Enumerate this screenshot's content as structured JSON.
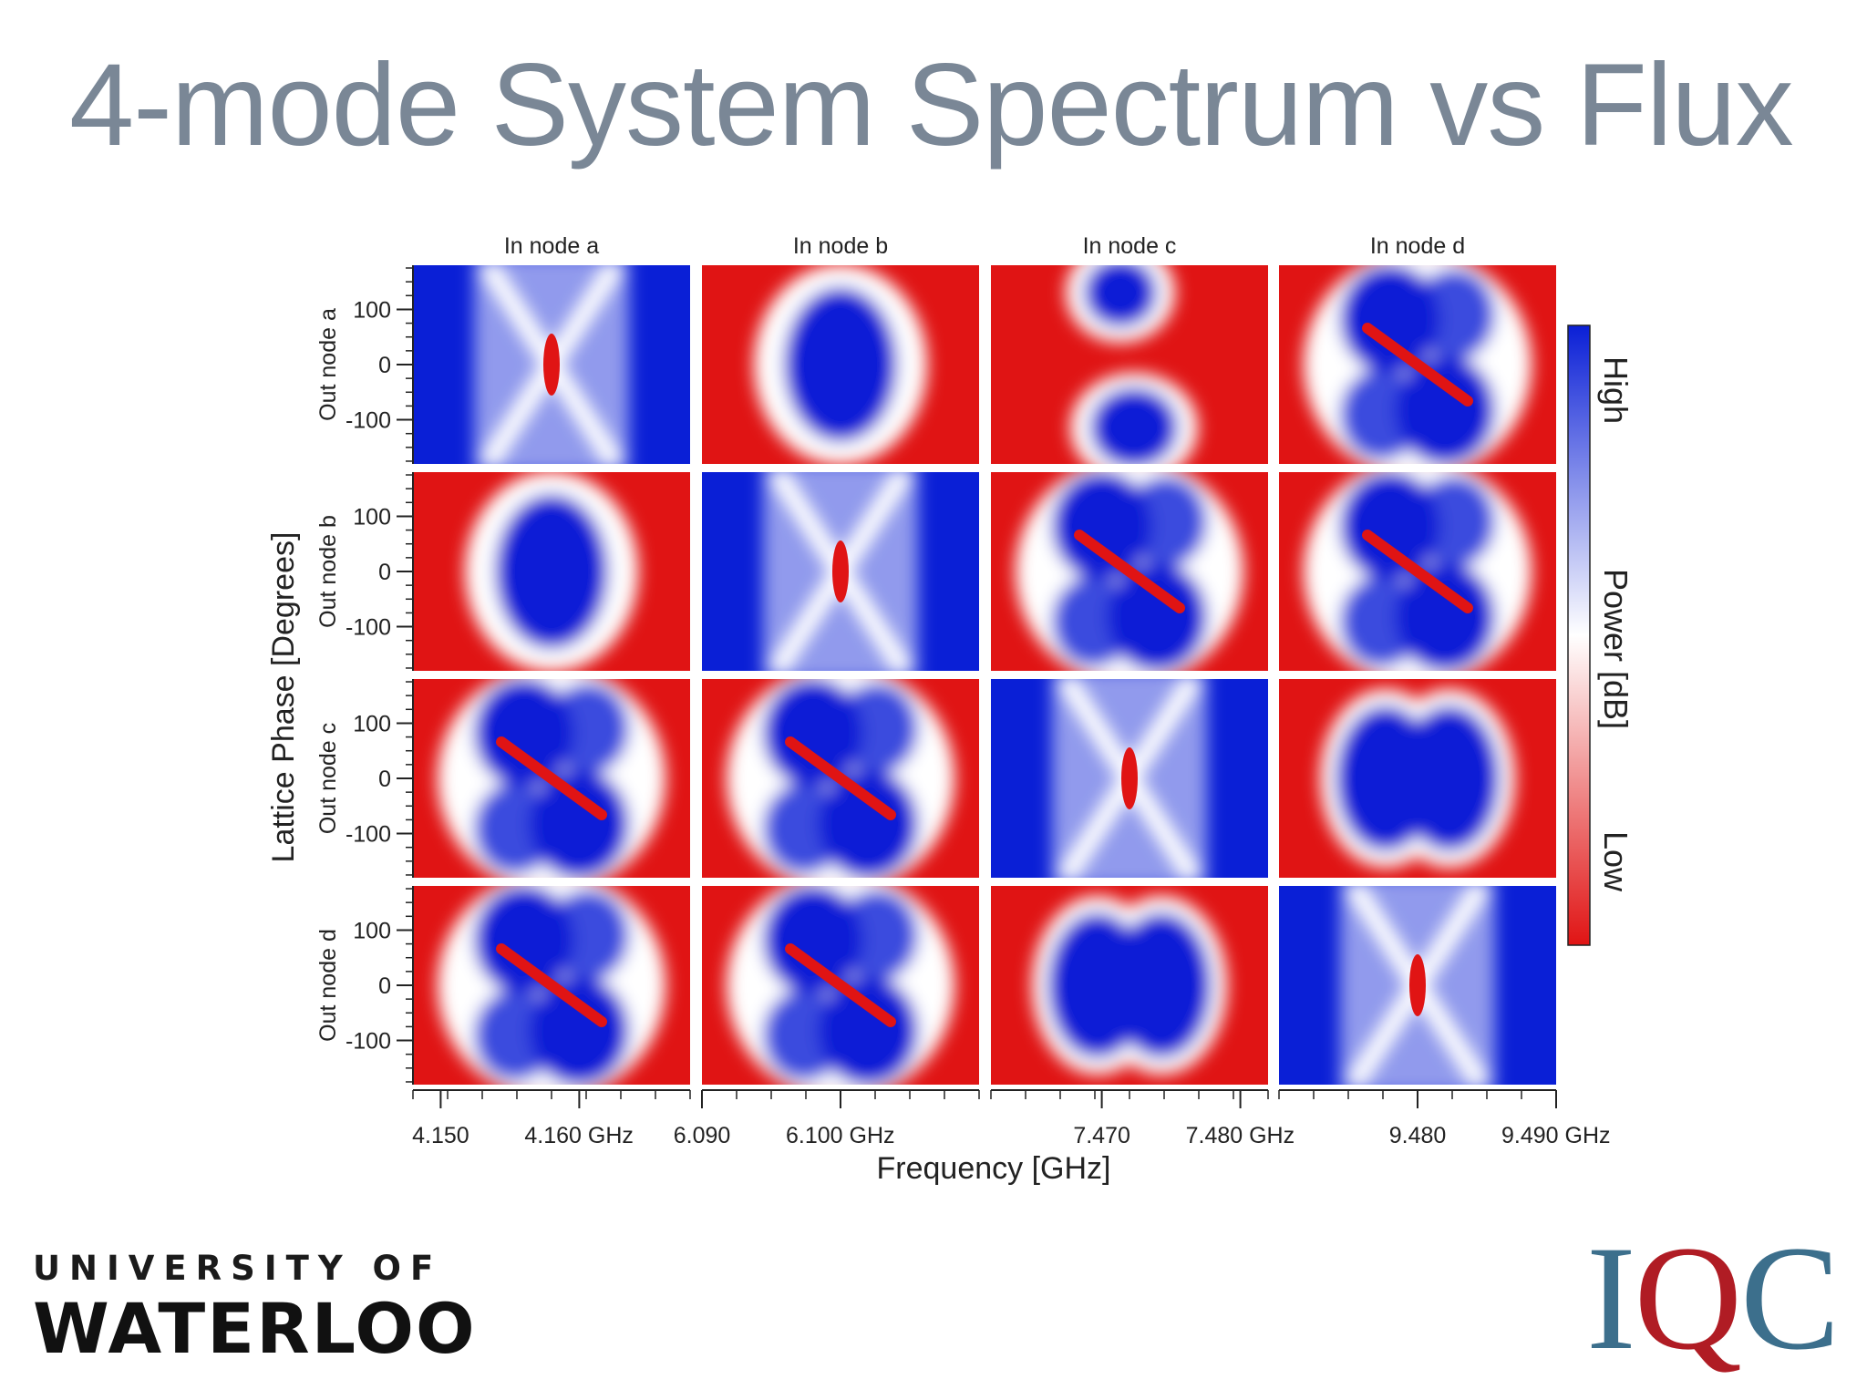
{
  "title": "4-mode System Spectrum vs Flux",
  "colors": {
    "title": "#7a8796",
    "high": "#0a1fd6",
    "mid": "#ffffff",
    "low": "#e01414",
    "iqc_blue": "#3c6f8c",
    "iqc_red": "#b01c24"
  },
  "chart_data": {
    "type": "heatmap",
    "description_type": "4x4 grid of heatmaps (transmission spectra)",
    "column_titles": [
      "In node a",
      "In node b",
      "In node c",
      "In node d"
    ],
    "row_labels": [
      "Out node a",
      "Out node b",
      "Out node c",
      "Out node d"
    ],
    "xlabel": "Frequency [GHz]",
    "ylabel": "Lattice Phase [Degrees]",
    "y_ticks": [
      "100",
      "0",
      "-100"
    ],
    "y_tick_values": [
      100,
      0,
      -100
    ],
    "ylim": [
      -180,
      180
    ],
    "x_axes": [
      {
        "column": "In node a",
        "ticks": [
          "4.150",
          "4.160 GHz"
        ],
        "tick_values": [
          4.15,
          4.16
        ],
        "xlim": [
          4.148,
          4.168
        ]
      },
      {
        "column": "In node b",
        "ticks": [
          "6.090",
          "6.100 GHz"
        ],
        "tick_values": [
          6.09,
          6.1
        ],
        "xlim": [
          6.09,
          6.11
        ]
      },
      {
        "column": "In node c",
        "ticks": [
          "7.470",
          "7.480 GHz"
        ],
        "tick_values": [
          7.47,
          7.48
        ],
        "xlim": [
          7.462,
          7.482
        ]
      },
      {
        "column": "In node d",
        "ticks": [
          "9.480",
          "9.490 GHz"
        ],
        "tick_values": [
          9.48,
          9.49
        ],
        "xlim": [
          9.47,
          9.49
        ]
      }
    ],
    "colorbar": {
      "label": "Power  [dB]",
      "high_label": "High",
      "low_label": "Low",
      "colors": [
        "#0a1fd6",
        "#ffffff",
        "#e01414"
      ]
    },
    "panels": [
      {
        "row": "Out node a",
        "column": "In node a",
        "background": "high",
        "feature": "diagonal-crossing"
      },
      {
        "row": "Out node a",
        "column": "In node b",
        "background": "low",
        "feature": "blob"
      },
      {
        "row": "Out node a",
        "column": "In node c",
        "background": "low",
        "feature": "two-lobes"
      },
      {
        "row": "Out node a",
        "column": "In node d",
        "background": "low",
        "feature": "lobes-and-crossing"
      },
      {
        "row": "Out node b",
        "column": "In node a",
        "background": "low",
        "feature": "blob"
      },
      {
        "row": "Out node b",
        "column": "In node b",
        "background": "high",
        "feature": "diagonal-crossing"
      },
      {
        "row": "Out node b",
        "column": "In node c",
        "background": "low",
        "feature": "lobes-and-crossing"
      },
      {
        "row": "Out node b",
        "column": "In node d",
        "background": "low",
        "feature": "lobes-and-crossing"
      },
      {
        "row": "Out node c",
        "column": "In node a",
        "background": "low",
        "feature": "lobes-and-crossing"
      },
      {
        "row": "Out node c",
        "column": "In node b",
        "background": "low",
        "feature": "lobes-and-crossing"
      },
      {
        "row": "Out node c",
        "column": "In node c",
        "background": "high",
        "feature": "diagonal-crossing"
      },
      {
        "row": "Out node c",
        "column": "In node d",
        "background": "low",
        "feature": "bowtie"
      },
      {
        "row": "Out node d",
        "column": "In node a",
        "background": "low",
        "feature": "lobes-and-crossing"
      },
      {
        "row": "Out node d",
        "column": "In node b",
        "background": "low",
        "feature": "lobes-and-crossing"
      },
      {
        "row": "Out node d",
        "column": "In node c",
        "background": "low",
        "feature": "bowtie"
      },
      {
        "row": "Out node d",
        "column": "In node d",
        "background": "high",
        "feature": "diagonal-crossing"
      }
    ]
  },
  "logos": {
    "waterloo_top": "UNIVERSITY OF",
    "waterloo_bottom": "WATERLOO",
    "iqc_i": "I",
    "iqc_q": "Q",
    "iqc_c": "C"
  }
}
